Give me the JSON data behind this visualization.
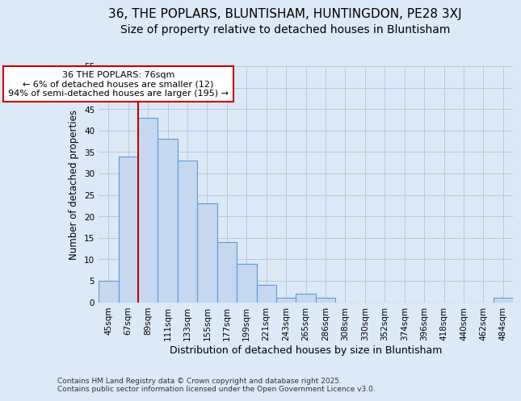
{
  "title1": "36, THE POPLARS, BLUNTISHAM, HUNTINGDON, PE28 3XJ",
  "title2": "Size of property relative to detached houses in Bluntisham",
  "xlabel": "Distribution of detached houses by size in Bluntisham",
  "ylabel": "Number of detached properties",
  "categories": [
    "45sqm",
    "67sqm",
    "89sqm",
    "111sqm",
    "133sqm",
    "155sqm",
    "177sqm",
    "199sqm",
    "221sqm",
    "243sqm",
    "265sqm",
    "286sqm",
    "308sqm",
    "330sqm",
    "352sqm",
    "374sqm",
    "396sqm",
    "418sqm",
    "440sqm",
    "462sqm",
    "484sqm"
  ],
  "values": [
    5,
    34,
    43,
    38,
    33,
    23,
    14,
    9,
    4,
    1,
    2,
    1,
    0,
    0,
    0,
    0,
    0,
    0,
    0,
    0,
    1
  ],
  "bar_color": "#c5d8f0",
  "bar_edge_color": "#5b9bd5",
  "ylim": [
    0,
    55
  ],
  "yticks": [
    0,
    5,
    10,
    15,
    20,
    25,
    30,
    35,
    40,
    45,
    50,
    55
  ],
  "annotation_text": "36 THE POPLARS: 76sqm\n← 6% of detached houses are smaller (12)\n94% of semi-detached houses are larger (195) →",
  "annotation_box_color": "#ffffff",
  "annotation_box_edge": "#cc0000",
  "vline_color": "#cc0000",
  "background_color": "#dce9f7",
  "plot_bg_color": "#dce9f7",
  "grid_color": "#b8c8df",
  "footer": "Contains HM Land Registry data © Crown copyright and database right 2025.\nContains public sector information licensed under the Open Government Licence v3.0.",
  "title1_fontsize": 11,
  "title2_fontsize": 10,
  "tick_fontsize": 7.5,
  "xlabel_fontsize": 9,
  "ylabel_fontsize": 8.5,
  "annotation_fontsize": 8,
  "footer_fontsize": 6.5
}
